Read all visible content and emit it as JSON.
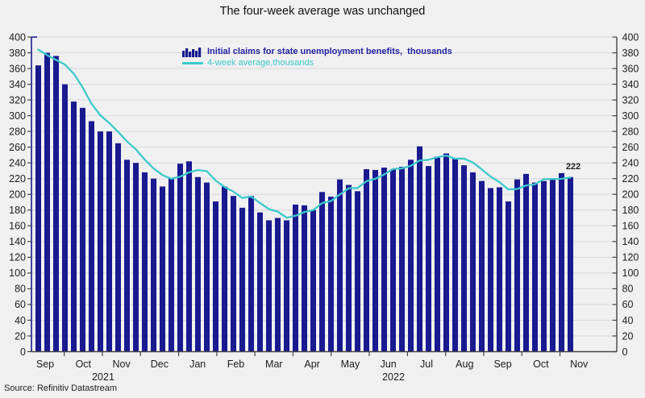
{
  "title": "The four-week average was unchanged",
  "source": "Source: Refinitiv Datastream",
  "annotation": "222",
  "legend": {
    "bars_label": "Initial claims for state unemployment benefits,  thousands",
    "line_label": "4-week average,thousands"
  },
  "colors": {
    "bar": "#191990",
    "line": "#3ec9cb",
    "background": "#f0f0f1",
    "grid": "#d9d9db",
    "axis": "#444444",
    "left_axis": "#191990",
    "text": "#1c1c1c"
  },
  "chart_data": {
    "type": "bar",
    "title": "The four-week average was unchanged",
    "xlabel": "",
    "ylabel": "thousands",
    "ylim": [
      0,
      400
    ],
    "grid": "horizontal",
    "legend_position": "top-center",
    "y_ticks": [
      0,
      20,
      40,
      60,
      80,
      100,
      120,
      140,
      160,
      180,
      200,
      220,
      240,
      260,
      280,
      300,
      320,
      340,
      360,
      380,
      400
    ],
    "x_month_labels": [
      "Sep",
      "Oct",
      "Nov",
      "Dec",
      "Jan",
      "Feb",
      "Mar",
      "Apr",
      "May",
      "Jun",
      "Jul",
      "Aug",
      "Sep",
      "Oct",
      "Nov"
    ],
    "x_year_labels": [
      {
        "label": "2021",
        "x": 128
      },
      {
        "label": "2022",
        "x": 488
      }
    ],
    "series": [
      {
        "name": "Initial claims for state unemployment benefits, thousands",
        "type": "bar",
        "values": [
          364,
          380,
          376,
          340,
          318,
          310,
          293,
          280,
          280,
          265,
          244,
          240,
          228,
          220,
          210,
          221,
          239,
          242,
          222,
          215,
          191,
          210,
          198,
          183,
          198,
          177,
          167,
          170,
          167,
          187,
          186,
          180,
          203,
          197,
          219,
          212,
          204,
          232,
          231,
          234,
          232,
          235,
          244,
          261,
          236,
          248,
          252,
          245,
          237,
          228,
          217,
          208,
          209,
          191,
          219,
          226,
          215,
          217,
          220,
          227,
          222
        ]
      },
      {
        "name": "4-week average, thousands",
        "type": "line",
        "values": [
          384,
          377,
          371,
          365,
          353.5,
          336,
          315.3,
          300.3,
          290.8,
          279.5,
          267.3,
          257.3,
          244.3,
          233,
          224.5,
          219.8,
          222.5,
          228,
          231,
          229.5,
          217.5,
          209.5,
          203.5,
          195.5,
          197.3,
          189,
          181.3,
          178,
          170.3,
          172.8,
          177.5,
          180,
          189,
          191.5,
          199.8,
          207.8,
          208,
          216.8,
          219.8,
          225.3,
          232.3,
          233,
          236.3,
          243,
          244,
          247.3,
          249.3,
          245.3,
          245.5,
          240.5,
          231.8,
          222.5,
          215.5,
          206.3,
          206.8,
          211.3,
          212.8,
          219.3,
          219.5,
          219.8,
          221.5
        ]
      }
    ],
    "last_bar_label": "222"
  }
}
